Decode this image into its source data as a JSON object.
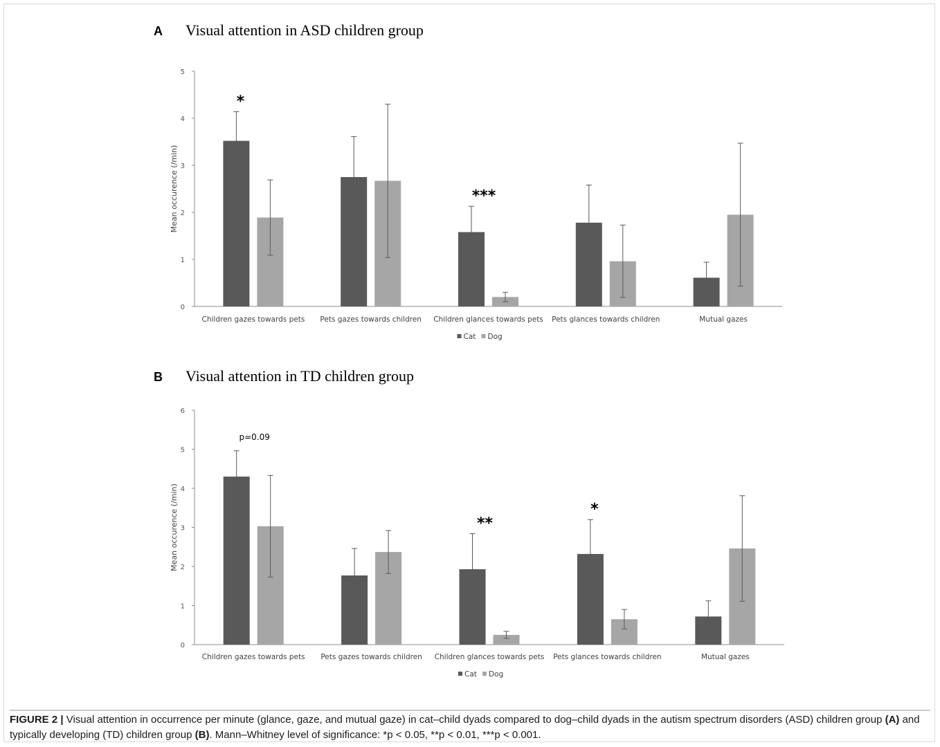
{
  "panels": [
    {
      "letter": "A",
      "title": "Visual attention in ASD children group",
      "ylabel": "Mean occurence (/min)",
      "legend": [
        "Cat",
        "Dog"
      ],
      "significance": [
        "*",
        "",
        "***",
        "",
        ""
      ]
    },
    {
      "letter": "B",
      "title": "Visual attention in TD children group",
      "ylabel": "Mean occurence (/min)",
      "legend": [
        "Cat",
        "Dog"
      ],
      "significance": [
        "p=0.09",
        "",
        "**",
        "*",
        ""
      ]
    }
  ],
  "caption": {
    "label": "FIGURE 2 |",
    "text_1": " Visual attention in occurrence per minute (glance, gaze, and mutual gaze) in cat–child dyads compared to dog–child dyads in the autism spectrum disorders (ASD) children group ",
    "ref_a": "(A)",
    "text_2": " and typically developing (TD) children group ",
    "ref_b": "(B)",
    "text_3": ". Mann–Whitney level of significance: *p < 0.05, **p < 0.01, ***p < 0.001."
  },
  "colors": {
    "cat": "#595959",
    "dog": "#a6a6a6",
    "axis": "#8c8c8c",
    "error": "#595959"
  },
  "chart_data": [
    {
      "type": "bar",
      "title": "Visual attention in ASD children group",
      "xlabel": "",
      "ylabel": "Mean occurence (/min)",
      "ylim": [
        0,
        5
      ],
      "yticks": [
        0,
        1,
        2,
        3,
        4,
        5
      ],
      "categories": [
        "Children gazes towards pets",
        "Pets gazes towards children",
        "Children glances towards pets",
        "Pets glances towards children",
        "Mutual gazes"
      ],
      "series": [
        {
          "name": "Cat",
          "values": [
            3.52,
            2.75,
            1.58,
            1.78,
            0.61
          ],
          "error": [
            0.62,
            0.86,
            0.55,
            0.8,
            0.33
          ]
        },
        {
          "name": "Dog",
          "values": [
            1.89,
            2.67,
            0.2,
            0.96,
            1.95
          ],
          "error": [
            0.8,
            1.63,
            0.1,
            0.77,
            1.52
          ]
        }
      ],
      "legend": "bottom",
      "grid": false
    },
    {
      "type": "bar",
      "title": "Visual attention in TD children group",
      "xlabel": "",
      "ylabel": "Mean occurence (/min)",
      "ylim": [
        0,
        6
      ],
      "yticks": [
        0,
        1,
        2,
        3,
        4,
        5,
        6
      ],
      "categories": [
        "Children gazes towards pets",
        "Pets gazes towards children",
        "Children glances towards pets",
        "Pets glances towards children",
        "Mutual gazes"
      ],
      "series": [
        {
          "name": "Cat",
          "values": [
            4.3,
            1.77,
            1.93,
            2.32,
            0.72
          ],
          "error": [
            0.66,
            0.69,
            0.91,
            0.88,
            0.4
          ]
        },
        {
          "name": "Dog",
          "values": [
            3.03,
            2.37,
            0.25,
            0.65,
            2.46
          ],
          "error": [
            1.3,
            0.55,
            0.09,
            0.25,
            1.35
          ]
        }
      ],
      "legend": "bottom",
      "grid": false
    }
  ]
}
